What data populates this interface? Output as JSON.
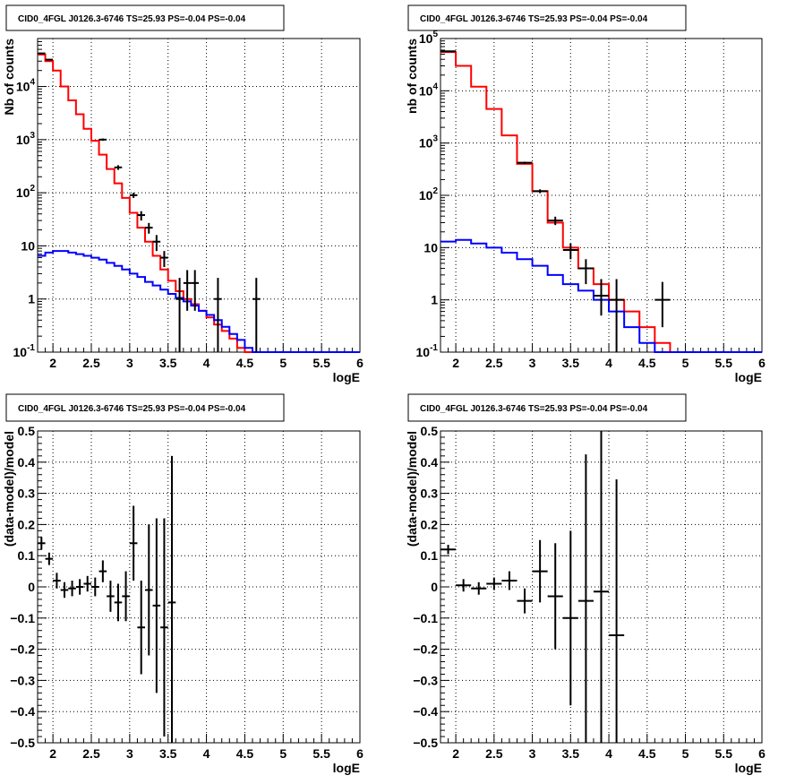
{
  "chart_data": [
    {
      "panel": "top-left",
      "type": "line",
      "title": "CID0_4FGL J0126.3-6746 TS=25.93 PS=-0.04 PS=-0.04",
      "xlabel": "logE",
      "ylabel": "Nb of counts",
      "xlim": [
        1.8,
        6.0
      ],
      "ylim": [
        0.1,
        80000
      ],
      "yscale": "log",
      "grid": true,
      "xticks": [
        2,
        2.5,
        3,
        3.5,
        4,
        4.5,
        5,
        5.5,
        6
      ],
      "xtick_labels": [
        "2",
        "2.5",
        "3",
        "3.5",
        "4",
        "4.5",
        "5",
        "5.5",
        "6"
      ],
      "yticks": [
        0.1,
        1,
        10,
        100,
        1000,
        10000
      ],
      "ytick_labels": [
        "10^-1",
        "1",
        "10",
        "10^2",
        "10^3",
        "10^4"
      ],
      "bins": {
        "x0": 1.8,
        "width": 0.1
      },
      "series": [
        {
          "role": "total-model",
          "color": "#ff0000",
          "values": [
            40000,
            30000,
            20000,
            10000,
            5500,
            3000,
            1600,
            950,
            520,
            280,
            150,
            80,
            42,
            22,
            12,
            6.5,
            3.6,
            2.2,
            1.4,
            1.0,
            0.8,
            0.6,
            0.45,
            0.33,
            0.25,
            0.18,
            0.12,
            0.1,
            0.1,
            0.1,
            0.1,
            0.1,
            0.1,
            0.1,
            0.1,
            0.1,
            0.1,
            0.1,
            0.1,
            0.1,
            0.1,
            0.1
          ]
        },
        {
          "role": "source-model",
          "color": "#0000ff",
          "values": [
            6.5,
            7.5,
            8,
            8,
            7.5,
            7,
            6.5,
            6,
            5.5,
            4.8,
            4.2,
            3.6,
            3.0,
            2.6,
            2.1,
            1.8,
            1.5,
            1.25,
            1.05,
            0.9,
            0.75,
            0.6,
            0.5,
            0.4,
            0.3,
            0.22,
            0.17,
            0.12,
            0.1,
            0.1,
            0.1,
            0.1,
            0.1,
            0.1,
            0.1,
            0.1,
            0.1,
            0.1,
            0.1,
            0.1,
            0.1,
            0.1
          ]
        }
      ],
      "data_points": [
        {
          "x": 1.85,
          "y": 42000,
          "ylo": 41000,
          "yhi": 43000
        },
        {
          "x": 1.95,
          "y": 32000,
          "ylo": 31000,
          "yhi": 33000
        },
        {
          "x": 2.65,
          "y": 1000,
          "ylo": 950,
          "yhi": 1050
        },
        {
          "x": 2.85,
          "y": 300,
          "ylo": 270,
          "yhi": 330
        },
        {
          "x": 3.05,
          "y": 90,
          "ylo": 80,
          "yhi": 100
        },
        {
          "x": 3.15,
          "y": 38,
          "ylo": 30,
          "yhi": 45
        },
        {
          "x": 3.25,
          "y": 22,
          "ylo": 17,
          "yhi": 27
        },
        {
          "x": 3.35,
          "y": 12,
          "ylo": 8,
          "yhi": 16
        },
        {
          "x": 3.45,
          "y": 6,
          "ylo": 4,
          "yhi": 8
        },
        {
          "x": 3.65,
          "y": 1,
          "ylo": 0.1,
          "yhi": 2.5
        },
        {
          "x": 3.75,
          "y": 2,
          "ylo": 0.6,
          "yhi": 3.5
        },
        {
          "x": 3.85,
          "y": 2,
          "ylo": 0.6,
          "yhi": 3.5
        },
        {
          "x": 4.15,
          "y": 1,
          "ylo": 0.1,
          "yhi": 2.5
        },
        {
          "x": 4.65,
          "y": 1,
          "ylo": 0.1,
          "yhi": 2.5
        }
      ]
    },
    {
      "panel": "top-right",
      "type": "line",
      "title": "CID0_4FGL J0126.3-6746 TS=25.93 PS=-0.04 PS=-0.04",
      "xlabel": "logE",
      "ylabel": "nb of counts",
      "xlim": [
        1.8,
        6.0
      ],
      "ylim": [
        0.1,
        100000
      ],
      "yscale": "log",
      "grid": true,
      "xticks": [
        2,
        2.5,
        3,
        3.5,
        4,
        4.5,
        5,
        5.5,
        6
      ],
      "xtick_labels": [
        "2",
        "2.5",
        "3",
        "3.5",
        "4",
        "4.5",
        "5",
        "5.5",
        "6"
      ],
      "yticks": [
        0.1,
        1,
        10,
        100,
        1000,
        10000,
        100000
      ],
      "ytick_labels": [
        "10^-1",
        "1",
        "10",
        "10^2",
        "10^3",
        "10^4",
        "10^5"
      ],
      "bins": {
        "x0": 1.8,
        "width": 0.2
      },
      "series": [
        {
          "role": "total-model",
          "color": "#ff0000",
          "values": [
            55000,
            30000,
            12000,
            4500,
            1400,
            400,
            120,
            30,
            10,
            4,
            2,
            1,
            0.6,
            0.3,
            0.15,
            0.1,
            0.1,
            0.1,
            0.1,
            0.1,
            0.1
          ]
        },
        {
          "role": "source-model",
          "color": "#0000ff",
          "values": [
            13,
            14,
            12,
            10,
            8,
            6,
            4.5,
            3,
            2,
            1.5,
            1,
            0.6,
            0.3,
            0.15,
            0.1,
            0.1,
            0.1,
            0.1,
            0.1,
            0.1,
            0.1
          ]
        }
      ],
      "data_points": [
        {
          "x": 1.9,
          "y": 57000,
          "ylo": 56000,
          "yhi": 58000
        },
        {
          "x": 2.9,
          "y": 420,
          "ylo": 400,
          "yhi": 440
        },
        {
          "x": 3.1,
          "y": 120,
          "ylo": 110,
          "yhi": 130
        },
        {
          "x": 3.3,
          "y": 33,
          "ylo": 27,
          "yhi": 39
        },
        {
          "x": 3.5,
          "y": 9,
          "ylo": 6,
          "yhi": 12
        },
        {
          "x": 3.7,
          "y": 4,
          "ylo": 2,
          "yhi": 6
        },
        {
          "x": 3.9,
          "y": 1.2,
          "ylo": 0.5,
          "yhi": 2.5
        },
        {
          "x": 4.1,
          "y": 1,
          "ylo": 0.1,
          "yhi": 2.5
        },
        {
          "x": 4.7,
          "y": 1,
          "ylo": 0.3,
          "yhi": 2.2
        }
      ]
    },
    {
      "panel": "bottom-left",
      "type": "scatter",
      "title": "CID0_4FGL J0126.3-6746 TS=25.93 PS=-0.04 PS=-0.04",
      "xlabel": "logE",
      "ylabel": "(data-model)/model",
      "xlim": [
        1.8,
        6.0
      ],
      "ylim": [
        -0.5,
        0.5
      ],
      "yscale": "linear",
      "grid": true,
      "xticks": [
        2,
        2.5,
        3,
        3.5,
        4,
        4.5,
        5,
        5.5,
        6
      ],
      "xtick_labels": [
        "2",
        "2.5",
        "3",
        "3.5",
        "4",
        "4.5",
        "5",
        "5.5",
        "6"
      ],
      "yticks": [
        -0.5,
        -0.4,
        -0.3,
        -0.2,
        -0.1,
        0,
        0.1,
        0.2,
        0.3,
        0.4,
        0.5
      ],
      "ytick_labels": [
        "−0.5",
        "−0.4",
        "−0.3",
        "−0.2",
        "−0.1",
        "0",
        "0.1",
        "0.2",
        "0.3",
        "0.4",
        "0.5"
      ],
      "xhalf": 0.05,
      "points": [
        {
          "x": 1.85,
          "y": 0.14,
          "err": 0.02
        },
        {
          "x": 1.95,
          "y": 0.09,
          "err": 0.02
        },
        {
          "x": 2.05,
          "y": 0.02,
          "err": 0.025
        },
        {
          "x": 2.15,
          "y": -0.01,
          "err": 0.025
        },
        {
          "x": 2.25,
          "y": -0.005,
          "err": 0.025
        },
        {
          "x": 2.35,
          "y": 0.0,
          "err": 0.025
        },
        {
          "x": 2.45,
          "y": 0.01,
          "err": 0.025
        },
        {
          "x": 2.55,
          "y": 0.0,
          "err": 0.03
        },
        {
          "x": 2.65,
          "y": 0.05,
          "err": 0.035
        },
        {
          "x": 2.75,
          "y": -0.03,
          "err": 0.05
        },
        {
          "x": 2.85,
          "y": -0.05,
          "err": 0.06
        },
        {
          "x": 2.95,
          "y": -0.03,
          "err": 0.08
        },
        {
          "x": 3.05,
          "y": 0.14,
          "err": 0.12
        },
        {
          "x": 3.15,
          "y": -0.13,
          "err": 0.15
        },
        {
          "x": 3.25,
          "y": -0.01,
          "err": 0.21
        },
        {
          "x": 3.35,
          "y": -0.06,
          "err": 0.28
        },
        {
          "x": 3.45,
          "y": -0.13,
          "err": 0.35
        },
        {
          "x": 3.55,
          "y": -0.05,
          "err": 0.47
        }
      ]
    },
    {
      "panel": "bottom-right",
      "type": "scatter",
      "title": "CID0_4FGL J0126.3-6746 TS=25.93 PS=-0.04 PS=-0.04",
      "xlabel": "logE",
      "ylabel": "(data-model)/model",
      "xlim": [
        1.8,
        6.0
      ],
      "ylim": [
        -0.5,
        0.5
      ],
      "yscale": "linear",
      "grid": true,
      "xticks": [
        2,
        2.5,
        3,
        3.5,
        4,
        4.5,
        5,
        5.5,
        6
      ],
      "xtick_labels": [
        "2",
        "2.5",
        "3",
        "3.5",
        "4",
        "4.5",
        "5",
        "5.5",
        "6"
      ],
      "yticks": [
        -0.5,
        -0.4,
        -0.3,
        -0.2,
        -0.1,
        0,
        0.1,
        0.2,
        0.3,
        0.4,
        0.5
      ],
      "ytick_labels": [
        "−0.5",
        "−0.4",
        "−0.3",
        "−0.2",
        "−0.1",
        "0",
        "0.1",
        "0.2",
        "0.3",
        "0.4",
        "0.5"
      ],
      "xhalf": 0.1,
      "points": [
        {
          "x": 1.9,
          "y": 0.12,
          "err": 0.015
        },
        {
          "x": 2.1,
          "y": 0.005,
          "err": 0.02
        },
        {
          "x": 2.3,
          "y": -0.005,
          "err": 0.02
        },
        {
          "x": 2.5,
          "y": 0.01,
          "err": 0.02
        },
        {
          "x": 2.7,
          "y": 0.02,
          "err": 0.03
        },
        {
          "x": 2.9,
          "y": -0.045,
          "err": 0.04
        },
        {
          "x": 3.1,
          "y": 0.05,
          "err": 0.1
        },
        {
          "x": 3.3,
          "y": -0.03,
          "err": 0.17
        },
        {
          "x": 3.5,
          "y": -0.1,
          "err": 0.28
        },
        {
          "x": 3.7,
          "y": -0.045,
          "err": 0.47
        },
        {
          "x": 3.9,
          "y": -0.015,
          "err": 0.6
        },
        {
          "x": 4.1,
          "y": -0.155,
          "err": 0.5
        }
      ]
    }
  ]
}
